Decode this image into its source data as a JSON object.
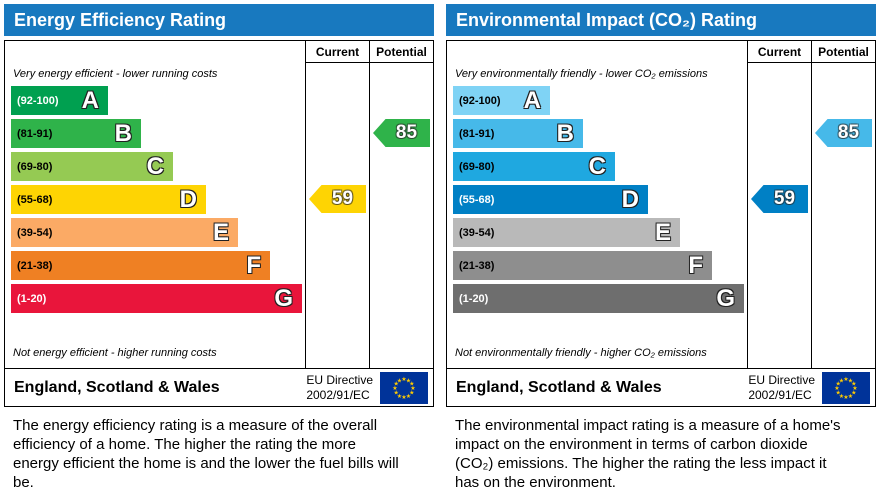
{
  "panels": [
    {
      "title": "Energy Efficiency Rating",
      "columns": {
        "current": "Current",
        "potential": "Potential"
      },
      "top_label": "Very energy efficient - lower running costs",
      "bottom_label": "Not energy efficient - higher running costs",
      "bands": [
        {
          "letter": "A",
          "range": "(92-100)",
          "color": "#00a050",
          "range_color": "#ffffff"
        },
        {
          "letter": "B",
          "range": "(81-91)",
          "color": "#2fb34a",
          "range_color": "#000000"
        },
        {
          "letter": "C",
          "range": "(69-80)",
          "color": "#95ca53",
          "range_color": "#000000"
        },
        {
          "letter": "D",
          "range": "(55-68)",
          "color": "#fed403",
          "range_color": "#000000"
        },
        {
          "letter": "E",
          "range": "(39-54)",
          "color": "#fbaa65",
          "range_color": "#000000"
        },
        {
          "letter": "F",
          "range": "(21-38)",
          "color": "#ef8023",
          "range_color": "#000000"
        },
        {
          "letter": "G",
          "range": "(1-20)",
          "color": "#e9153b",
          "range_color": "#ffffff"
        }
      ],
      "current": {
        "value": "59",
        "color": "#fed403"
      },
      "potential": {
        "value": "85",
        "color": "#2fb34a"
      },
      "footer": {
        "region": "England, Scotland & Wales",
        "directive": "EU Directive",
        "directive_ref": "2002/91/EC"
      },
      "description": "The energy efficiency rating is a measure of the overall efficiency of a home. The higher the rating the more energy efficient the home is and the lower the fuel bills will be."
    },
    {
      "title": "Environmental Impact (CO₂) Rating",
      "columns": {
        "current": "Current",
        "potential": "Potential"
      },
      "top_label": "Very environmentally friendly - lower CO₂ emissions",
      "bottom_label": "Not environmentally friendly - higher CO₂ emissions",
      "bands": [
        {
          "letter": "A",
          "range": "(92-100)",
          "color": "#7fd3f5",
          "range_color": "#000000"
        },
        {
          "letter": "B",
          "range": "(81-91)",
          "color": "#46b9e9",
          "range_color": "#000000"
        },
        {
          "letter": "C",
          "range": "(69-80)",
          "color": "#1fa8e0",
          "range_color": "#000000"
        },
        {
          "letter": "D",
          "range": "(55-68)",
          "color": "#0080c5",
          "range_color": "#ffffff"
        },
        {
          "letter": "E",
          "range": "(39-54)",
          "color": "#b9b9b9",
          "range_color": "#000000"
        },
        {
          "letter": "F",
          "range": "(21-38)",
          "color": "#8e8e8e",
          "range_color": "#000000"
        },
        {
          "letter": "G",
          "range": "(1-20)",
          "color": "#6e6e6e",
          "range_color": "#ffffff"
        }
      ],
      "current": {
        "value": "59",
        "color": "#0080c5"
      },
      "potential": {
        "value": "85",
        "color": "#46b9e9"
      },
      "footer": {
        "region": "England, Scotland & Wales",
        "directive": "EU Directive",
        "directive_ref": "2002/91/EC"
      },
      "description": "The environmental impact rating is a measure of a home's impact on the environment in terms of carbon dioxide (CO₂) emissions. The higher the rating the less impact it has on the environment."
    }
  ],
  "colors": {
    "header_bg": "#1879bf",
    "eu_flag_bg": "#003399",
    "eu_star": "#ffcc00"
  },
  "chart_data": [
    {
      "type": "bar",
      "title": "Energy Efficiency Rating",
      "categories": [
        "A (92-100)",
        "B (81-91)",
        "C (69-80)",
        "D (55-68)",
        "E (39-54)",
        "F (21-38)",
        "G (1-20)"
      ],
      "current": 59,
      "current_band": "D",
      "potential": 85,
      "potential_band": "B",
      "scale": [
        1,
        100
      ],
      "top_annotation": "Very energy efficient - lower running costs",
      "bottom_annotation": "Not energy efficient - higher running costs"
    },
    {
      "type": "bar",
      "title": "Environmental Impact (CO₂) Rating",
      "categories": [
        "A (92-100)",
        "B (81-91)",
        "C (69-80)",
        "D (55-68)",
        "E (39-54)",
        "F (21-38)",
        "G (1-20)"
      ],
      "current": 59,
      "current_band": "D",
      "potential": 85,
      "potential_band": "B",
      "scale": [
        1,
        100
      ],
      "top_annotation": "Very environmentally friendly - lower CO₂ emissions",
      "bottom_annotation": "Not environmentally friendly - higher CO₂ emissions"
    }
  ]
}
